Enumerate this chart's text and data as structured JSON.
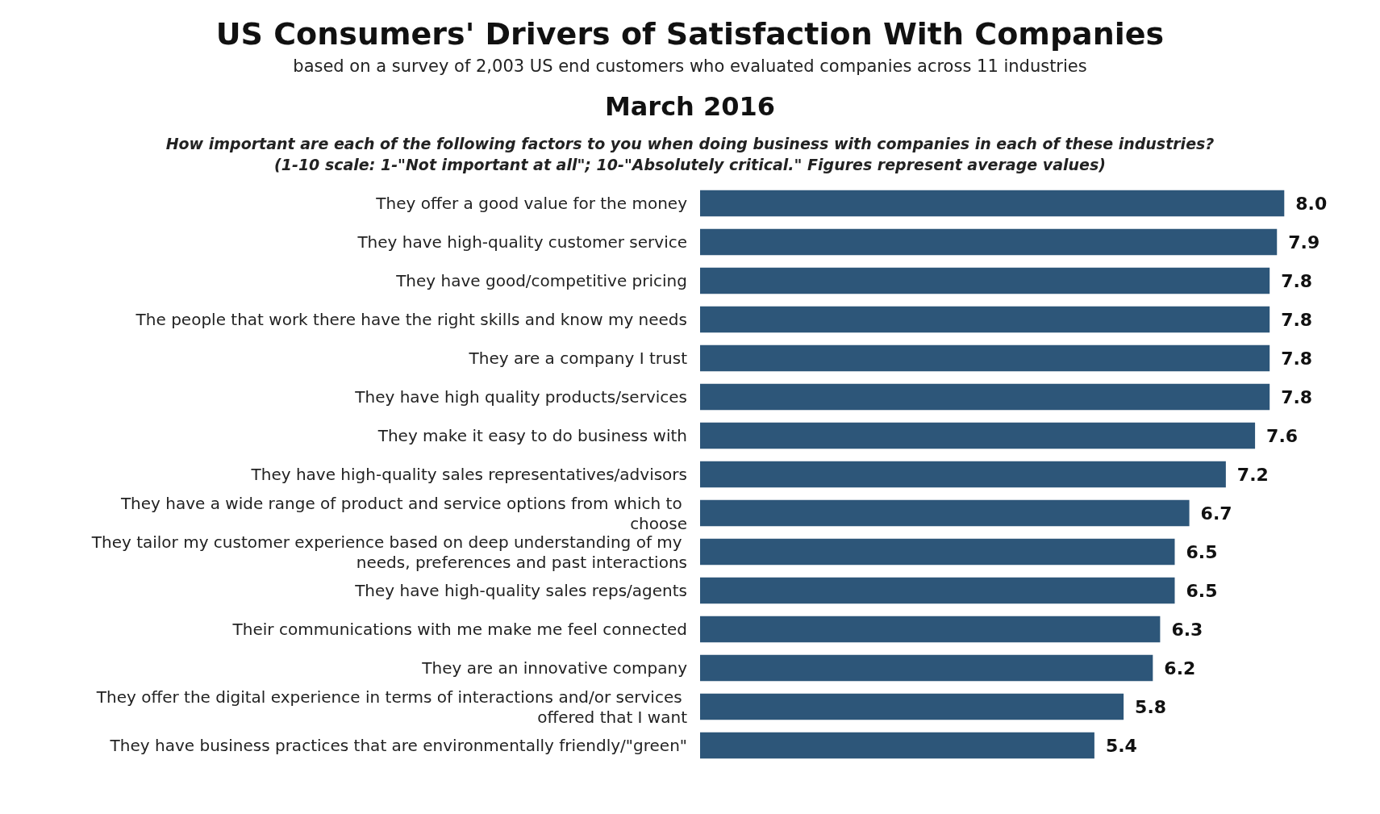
{
  "chart_data": {
    "type": "bar",
    "orientation": "horizontal",
    "title": "US Consumers' Drivers of Satisfaction With Companies",
    "subtitle": "based on a survey of 2,003 US end customers who evaluated companies across 11 industries",
    "annotations": [
      "March 2016",
      "How important are each of the following factors to you when doing business with companies in each of these industries?\n(1-10 scale: 1-\"Not important at all\"; 10-\"Absolutely critical.\" Figures represent average values)"
    ],
    "categories": [
      "They offer a good value for the money",
      "They have high-quality customer service",
      "They have good/competitive pricing",
      "The people that work there have the right skills and know my needs",
      "They are a company I trust",
      "They have high quality products/services",
      "They make it easy to do business with",
      "They have high-quality sales representatives/advisors",
      "They have a wide range of product and service options from which to choose",
      "They tailor my customer experience based on deep understanding of my needs, preferences and past interactions",
      "They have high-quality sales reps/agents",
      "Their communications with me make me feel connected",
      "They are an innovative company",
      "They offer the digital experience in terms of interactions and/or services offered that I want",
      "They have business practices that are environmentally friendly/\"green\""
    ],
    "values": [
      8.0,
      7.9,
      7.8,
      7.8,
      7.8,
      7.8,
      7.6,
      7.2,
      6.7,
      6.5,
      6.5,
      6.3,
      6.2,
      5.8,
      5.4
    ],
    "value_labels": [
      "8.0",
      "7.9",
      "7.8",
      "7.8",
      "7.8",
      "7.8",
      "7.6",
      "7.2",
      "6.7",
      "6.5",
      "6.5",
      "6.3",
      "6.2",
      "5.8",
      "5.4"
    ],
    "color": "#2d5679"
  }
}
